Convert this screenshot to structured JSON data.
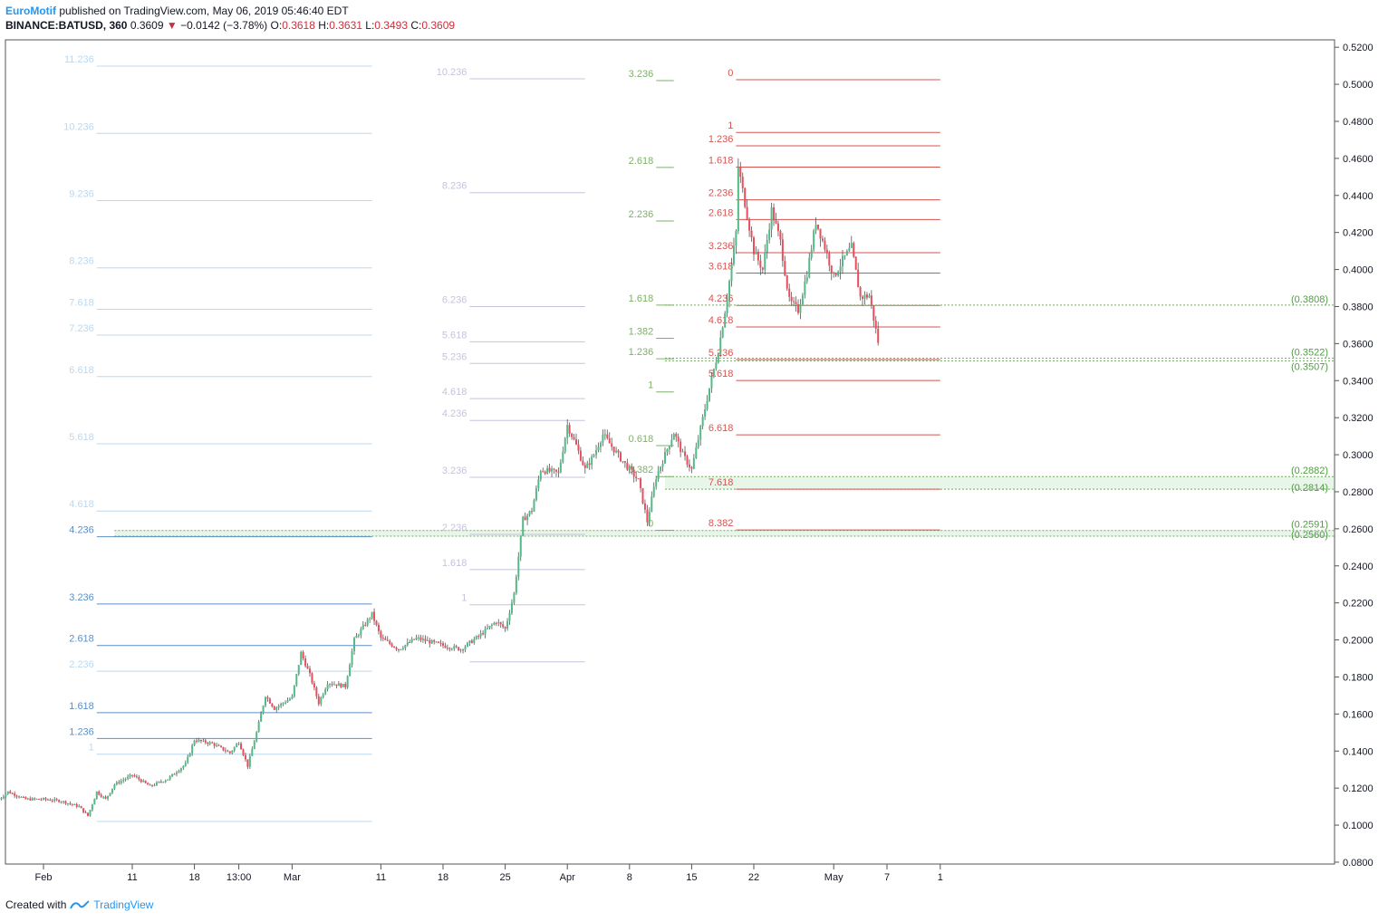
{
  "header": {
    "author": "EuroMotif",
    "published": "published on TradingView.com, May 06, 2019 05:46:40 EDT",
    "symbol": "BINANCE:BATUSD, 360",
    "last": "0.3609",
    "change": "−0.0142 (−3.78%)",
    "o_label": "O:",
    "o": "0.3618",
    "h_label": "H:",
    "h": "0.3631",
    "l_label": "L:",
    "l": "0.3493",
    "c_label": "C:",
    "c": "0.3609"
  },
  "footer": {
    "created": "Created with",
    "brand": "TradingView"
  },
  "colors": {
    "up": "#53b987",
    "down": "#eb4d5c",
    "grid_axis": "#555555",
    "fib_light": "#bcd8ee",
    "fib_blue": "#5d8fc6",
    "fib_lav": "#c5c3dc",
    "fib_green": "#7fb06a",
    "fib_red": "#d9534f",
    "zone": "#a5d6a7"
  },
  "chart_data": {
    "type": "candlestick",
    "symbol": "BINANCE:BATUSD",
    "interval": "360",
    "y_axis_ticks": [
      "0.5200",
      "0.5000",
      "0.4800",
      "0.4600",
      "0.4400",
      "0.4200",
      "0.4000",
      "0.3800",
      "0.3600",
      "0.3400",
      "0.3200",
      "0.3000",
      "0.2800",
      "0.2600",
      "0.2400",
      "0.2200",
      "0.2000",
      "0.1800",
      "0.1600",
      "0.1400",
      "0.1200",
      "0.1000",
      "0.0800"
    ],
    "ylim": [
      0.079,
      0.524
    ],
    "x_axis_ticks": [
      {
        "label": "Feb",
        "date": "2019-02-01"
      },
      {
        "label": "11",
        "date": "2019-02-11"
      },
      {
        "label": "18",
        "date": "2019-02-18"
      },
      {
        "label": "13:00",
        "date": "2019-02-23"
      },
      {
        "label": "Mar",
        "date": "2019-03-01"
      },
      {
        "label": "11",
        "date": "2019-03-11"
      },
      {
        "label": "18",
        "date": "2019-03-18"
      },
      {
        "label": "25",
        "date": "2019-03-25"
      },
      {
        "label": "Apr",
        "date": "2019-04-01"
      },
      {
        "label": "8",
        "date": "2019-04-08"
      },
      {
        "label": "15",
        "date": "2019-04-15"
      },
      {
        "label": "22",
        "date": "2019-04-22"
      },
      {
        "label": "May",
        "date": "2019-05-01"
      },
      {
        "label": "7",
        "date": "2019-05-07"
      },
      {
        "label": "1",
        "date": "2019-05-13"
      }
    ],
    "price_path": [
      {
        "date": "2019-01-27",
        "price": 0.114
      },
      {
        "date": "2019-01-28",
        "price": 0.118
      },
      {
        "date": "2019-01-30",
        "price": 0.114
      },
      {
        "date": "2019-02-01",
        "price": 0.114
      },
      {
        "date": "2019-02-03",
        "price": 0.113
      },
      {
        "date": "2019-02-05",
        "price": 0.11
      },
      {
        "date": "2019-02-06",
        "price": 0.105
      },
      {
        "date": "2019-02-07",
        "price": 0.118
      },
      {
        "date": "2019-02-08",
        "price": 0.114
      },
      {
        "date": "2019-02-09",
        "price": 0.122
      },
      {
        "date": "2019-02-11",
        "price": 0.127
      },
      {
        "date": "2019-02-13",
        "price": 0.121
      },
      {
        "date": "2019-02-15",
        "price": 0.125
      },
      {
        "date": "2019-02-17",
        "price": 0.133
      },
      {
        "date": "2019-02-18",
        "price": 0.146
      },
      {
        "date": "2019-02-20",
        "price": 0.144
      },
      {
        "date": "2019-02-22",
        "price": 0.139
      },
      {
        "date": "2019-02-23",
        "price": 0.145
      },
      {
        "date": "2019-02-24",
        "price": 0.132
      },
      {
        "date": "2019-02-25",
        "price": 0.15
      },
      {
        "date": "2019-02-26",
        "price": 0.17
      },
      {
        "date": "2019-02-27",
        "price": 0.163
      },
      {
        "date": "2019-03-01",
        "price": 0.169
      },
      {
        "date": "2019-03-02",
        "price": 0.193
      },
      {
        "date": "2019-03-03",
        "price": 0.181
      },
      {
        "date": "2019-03-04",
        "price": 0.166
      },
      {
        "date": "2019-03-05",
        "price": 0.177
      },
      {
        "date": "2019-03-07",
        "price": 0.175
      },
      {
        "date": "2019-03-08",
        "price": 0.2
      },
      {
        "date": "2019-03-10",
        "price": 0.214
      },
      {
        "date": "2019-03-11",
        "price": 0.201
      },
      {
        "date": "2019-03-13",
        "price": 0.195
      },
      {
        "date": "2019-03-15",
        "price": 0.201
      },
      {
        "date": "2019-03-18",
        "price": 0.197
      },
      {
        "date": "2019-03-20",
        "price": 0.195
      },
      {
        "date": "2019-03-22",
        "price": 0.202
      },
      {
        "date": "2019-03-24",
        "price": 0.21
      },
      {
        "date": "2019-03-25",
        "price": 0.206
      },
      {
        "date": "2019-03-26",
        "price": 0.225
      },
      {
        "date": "2019-03-27",
        "price": 0.265
      },
      {
        "date": "2019-03-28",
        "price": 0.27
      },
      {
        "date": "2019-03-29",
        "price": 0.292
      },
      {
        "date": "2019-03-31",
        "price": 0.29
      },
      {
        "date": "2019-04-01",
        "price": 0.316
      },
      {
        "date": "2019-04-02",
        "price": 0.305
      },
      {
        "date": "2019-04-03",
        "price": 0.292
      },
      {
        "date": "2019-04-04",
        "price": 0.3
      },
      {
        "date": "2019-04-05",
        "price": 0.311
      },
      {
        "date": "2019-04-07",
        "price": 0.298
      },
      {
        "date": "2019-04-08",
        "price": 0.292
      },
      {
        "date": "2019-04-09",
        "price": 0.286
      },
      {
        "date": "2019-04-10",
        "price": 0.264
      },
      {
        "date": "2019-04-11",
        "price": 0.288
      },
      {
        "date": "2019-04-13",
        "price": 0.312
      },
      {
        "date": "2019-04-14",
        "price": 0.3
      },
      {
        "date": "2019-04-15",
        "price": 0.292
      },
      {
        "date": "2019-04-16",
        "price": 0.314
      },
      {
        "date": "2019-04-17",
        "price": 0.336
      },
      {
        "date": "2019-04-18",
        "price": 0.356
      },
      {
        "date": "2019-04-19",
        "price": 0.385
      },
      {
        "date": "2019-04-20",
        "price": 0.42
      },
      {
        "date": "2019-04-20",
        "price": 0.462
      },
      {
        "date": "2019-04-21",
        "price": 0.436
      },
      {
        "date": "2019-04-22",
        "price": 0.41
      },
      {
        "date": "2019-04-23",
        "price": 0.4
      },
      {
        "date": "2019-04-24",
        "price": 0.432
      },
      {
        "date": "2019-04-25",
        "price": 0.415
      },
      {
        "date": "2019-04-26",
        "price": 0.383
      },
      {
        "date": "2019-04-27",
        "price": 0.378
      },
      {
        "date": "2019-04-28",
        "price": 0.398
      },
      {
        "date": "2019-04-29",
        "price": 0.426
      },
      {
        "date": "2019-04-30",
        "price": 0.412
      },
      {
        "date": "2019-05-01",
        "price": 0.396
      },
      {
        "date": "2019-05-02",
        "price": 0.405
      },
      {
        "date": "2019-05-03",
        "price": 0.412
      },
      {
        "date": "2019-05-04",
        "price": 0.385
      },
      {
        "date": "2019-05-05",
        "price": 0.386
      },
      {
        "date": "2019-05-06",
        "price": 0.361
      }
    ],
    "fib_extensions": [
      {
        "name": "fib-set-a",
        "color_light": "#bcd8ee",
        "color_dark": "#5d8fc6",
        "x_start": "2019-02-07",
        "x_end": "2019-03-10",
        "levels": [
          {
            "label": "11.236",
            "price": 0.5098
          },
          {
            "label": "10.236",
            "price": 0.4735
          },
          {
            "label": "9.236",
            "price": 0.4372
          },
          {
            "label": "8.236",
            "price": 0.4009
          },
          {
            "label": "7.618",
            "price": 0.3785
          },
          {
            "label": "7.236",
            "price": 0.3646
          },
          {
            "label": "6.618",
            "price": 0.3422
          },
          {
            "label": "5.618",
            "price": 0.3059
          },
          {
            "label": "4.618",
            "price": 0.2696
          },
          {
            "label": "4.236",
            "price": 0.2557,
            "dark": true
          },
          {
            "label": "3.236",
            "price": 0.2194,
            "dark": true
          },
          {
            "label": "2.618",
            "price": 0.197,
            "dark": true
          },
          {
            "label": "2.236",
            "price": 0.1831
          },
          {
            "label": "1.618",
            "price": 0.1607,
            "dark": true
          },
          {
            "label": "1.236",
            "price": 0.1468,
            "dark": true
          },
          {
            "label": "1",
            "price": 0.1383
          },
          {
            "label": "",
            "price": 0.102
          }
        ]
      },
      {
        "name": "fib-set-b",
        "color_light": "#c5c3dc",
        "x_start": "2019-03-21",
        "x_end": "2019-04-03",
        "levels": [
          {
            "label": "10.236",
            "price": 0.503
          },
          {
            "label": "8.236",
            "price": 0.4415
          },
          {
            "label": "6.236",
            "price": 0.38
          },
          {
            "label": "5.618",
            "price": 0.361
          },
          {
            "label": "5.236",
            "price": 0.3493
          },
          {
            "label": "4.618",
            "price": 0.3303
          },
          {
            "label": "4.236",
            "price": 0.3185
          },
          {
            "label": "3.236",
            "price": 0.2878
          },
          {
            "label": "2.236",
            "price": 0.257
          },
          {
            "label": "1.618",
            "price": 0.238
          },
          {
            "label": "1",
            "price": 0.219
          },
          {
            "label": "",
            "price": 0.1882
          }
        ]
      },
      {
        "name": "fib-set-c",
        "color_light": "#7fb06a",
        "x_start": "2019-04-11",
        "x_end": "2019-04-13",
        "levels": [
          {
            "label": "3.236",
            "price": 0.502
          },
          {
            "label": "2.618",
            "price": 0.4551
          },
          {
            "label": "2.236",
            "price": 0.4262
          },
          {
            "label": "1.618",
            "price": 0.3808
          },
          {
            "label": "1.382",
            "price": 0.3629
          },
          {
            "label": "1.236",
            "price": 0.3518
          },
          {
            "label": "1",
            "price": 0.3339
          },
          {
            "label": "0.618",
            "price": 0.3049
          },
          {
            "label": "0.382",
            "price": 0.2882
          },
          {
            "label": "0",
            "price": 0.2592
          }
        ]
      },
      {
        "name": "fib-set-d",
        "color_light": "#d9534f",
        "x_start": "2019-04-20",
        "x_end": "2019-05-13",
        "levels": [
          {
            "label": "0",
            "price": 0.5025
          },
          {
            "label": "1",
            "price": 0.474
          },
          {
            "label": "1.236",
            "price": 0.4668
          },
          {
            "label": "1.618",
            "price": 0.4553
          },
          {
            "label": "2.236",
            "price": 0.4376
          },
          {
            "label": "2.618",
            "price": 0.427
          },
          {
            "label": "3.236",
            "price": 0.4091
          },
          {
            "label": "3.618",
            "price": 0.3981
          },
          {
            "label": "4.236",
            "price": 0.3806
          },
          {
            "label": "4.618",
            "price": 0.369
          },
          {
            "label": "5.236",
            "price": 0.3514
          },
          {
            "label": "5.618",
            "price": 0.3401
          },
          {
            "label": "6.618",
            "price": 0.3107
          },
          {
            "label": "7.618",
            "price": 0.2814
          },
          {
            "label": "8.382",
            "price": 0.2594
          }
        ]
      }
    ],
    "support_zones": [
      {
        "label_top": "(0.2591)",
        "label_bottom": "(0.2560)",
        "top": 0.2591,
        "bottom": 0.256,
        "x_start": "2019-02-09"
      },
      {
        "label_top": "(0.2882)",
        "label_bottom": "(0.2814)",
        "top": 0.2882,
        "bottom": 0.2814,
        "x_start": "2019-04-12"
      }
    ],
    "price_tags": [
      {
        "label": "(0.3808)",
        "price": 0.3808
      },
      {
        "label": "(0.3522)",
        "price": 0.3522
      },
      {
        "label": "(0.3507)",
        "price": 0.3507
      }
    ]
  }
}
